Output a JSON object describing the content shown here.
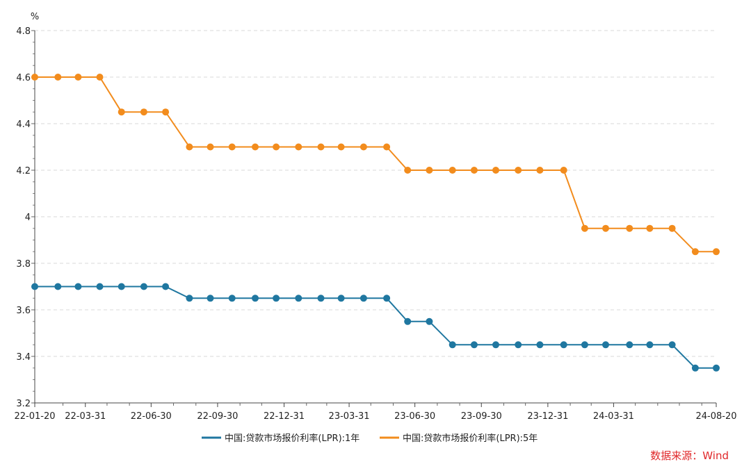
{
  "chart_data": {
    "type": "line",
    "title": "",
    "ylabel": "%",
    "ylim": [
      3.2,
      4.8
    ],
    "yticks": [
      "3.2",
      "3.4",
      "3.6",
      "3.8",
      "4",
      "4.2",
      "4.4",
      "4.6",
      "4.8"
    ],
    "grid": true,
    "legend_position": "bottom",
    "x": [
      "22-01-20",
      "22-02-21",
      "22-03-21",
      "22-04-20",
      "22-05-20",
      "22-06-20",
      "22-07-20",
      "22-08-22",
      "22-09-20",
      "22-10-20",
      "22-11-21",
      "22-12-20",
      "23-01-20",
      "23-02-20",
      "23-03-20",
      "23-04-20",
      "23-05-22",
      "23-06-20",
      "23-07-20",
      "23-08-21",
      "23-09-20",
      "23-10-20",
      "23-11-20",
      "23-12-20",
      "24-01-22",
      "24-02-20",
      "24-03-20",
      "24-04-22",
      "24-05-20",
      "24-06-20",
      "24-07-22",
      "24-08-20"
    ],
    "x_tick_labels": [
      "22-01-20",
      "22-03-31",
      "22-06-30",
      "22-09-30",
      "22-12-31",
      "23-03-31",
      "23-06-30",
      "23-09-30",
      "23-12-31",
      "24-03-31",
      "24-08-20"
    ],
    "series": [
      {
        "name": "中国:贷款市场报价利率(LPR):1年",
        "color": "#1f77a0",
        "values": [
          3.7,
          3.7,
          3.7,
          3.7,
          3.7,
          3.7,
          3.7,
          3.65,
          3.65,
          3.65,
          3.65,
          3.65,
          3.65,
          3.65,
          3.65,
          3.65,
          3.65,
          3.55,
          3.55,
          3.45,
          3.45,
          3.45,
          3.45,
          3.45,
          3.45,
          3.45,
          3.45,
          3.45,
          3.45,
          3.45,
          3.35,
          3.35
        ]
      },
      {
        "name": "中国:贷款市场报价利率(LPR):5年",
        "color": "#f28c1d",
        "values": [
          4.6,
          4.6,
          4.6,
          4.6,
          4.45,
          4.45,
          4.45,
          4.3,
          4.3,
          4.3,
          4.3,
          4.3,
          4.3,
          4.3,
          4.3,
          4.3,
          4.3,
          4.2,
          4.2,
          4.2,
          4.2,
          4.2,
          4.2,
          4.2,
          4.2,
          3.95,
          3.95,
          3.95,
          3.95,
          3.95,
          3.85,
          3.85
        ]
      }
    ]
  },
  "source_note": "数据来源：Wind"
}
